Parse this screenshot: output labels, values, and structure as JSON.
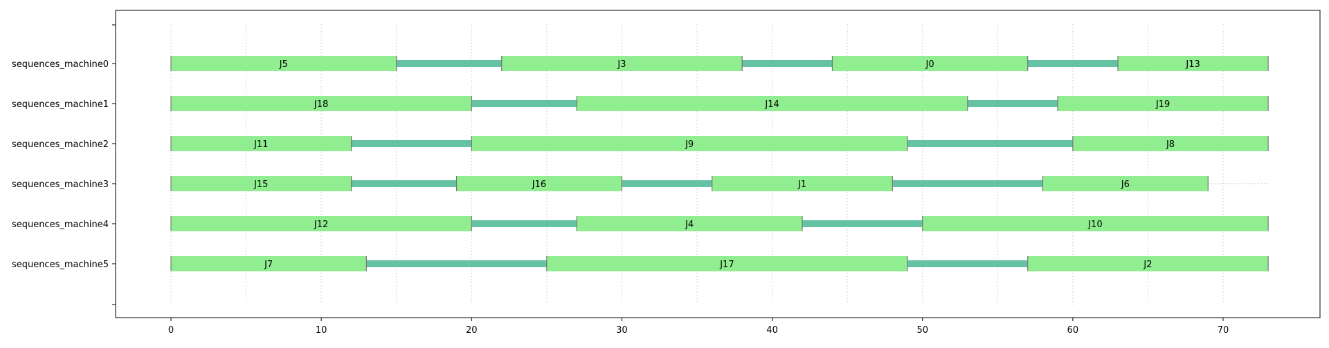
{
  "chart_data": {
    "type": "gantt",
    "xlim": [
      -3.7,
      76.7
    ],
    "x_ticks": [
      0,
      10,
      20,
      30,
      40,
      50,
      60,
      70
    ],
    "x_minor_grid": [
      0,
      5,
      10,
      15,
      20,
      25,
      30,
      35,
      40,
      45,
      50,
      55,
      60,
      65,
      70
    ],
    "grid": "vertical dotted",
    "makespan": 73,
    "colors": {
      "job": "#90ee90",
      "gap": "#66c2a5",
      "edge": "#777777",
      "axis": "#000000",
      "grid": "#c8c8c8"
    },
    "machines": [
      {
        "name": "sequences_machine0",
        "jobs": [
          {
            "label": "J5",
            "start": 0,
            "end": 15
          },
          {
            "label": "J3",
            "start": 22,
            "end": 38
          },
          {
            "label": "J0",
            "start": 44,
            "end": 57
          },
          {
            "label": "J13",
            "start": 63,
            "end": 73
          }
        ]
      },
      {
        "name": "sequences_machine1",
        "jobs": [
          {
            "label": "J18",
            "start": 0,
            "end": 20
          },
          {
            "label": "J14",
            "start": 27,
            "end": 53
          },
          {
            "label": "J19",
            "start": 59,
            "end": 73
          }
        ]
      },
      {
        "name": "sequences_machine2",
        "jobs": [
          {
            "label": "J11",
            "start": 0,
            "end": 12
          },
          {
            "label": "J9",
            "start": 20,
            "end": 49
          },
          {
            "label": "J8",
            "start": 60,
            "end": 73
          }
        ]
      },
      {
        "name": "sequences_machine3",
        "jobs": [
          {
            "label": "J15",
            "start": 0,
            "end": 12
          },
          {
            "label": "J16",
            "start": 19,
            "end": 30
          },
          {
            "label": "J1",
            "start": 36,
            "end": 48
          },
          {
            "label": "J6",
            "start": 58,
            "end": 69
          }
        ]
      },
      {
        "name": "sequences_machine4",
        "jobs": [
          {
            "label": "J12",
            "start": 0,
            "end": 20
          },
          {
            "label": "J4",
            "start": 27,
            "end": 42
          },
          {
            "label": "J10",
            "start": 50,
            "end": 73
          }
        ]
      },
      {
        "name": "sequences_machine5",
        "jobs": [
          {
            "label": "J7",
            "start": 0,
            "end": 13
          },
          {
            "label": "J17",
            "start": 25,
            "end": 49
          },
          {
            "label": "J2",
            "start": 57,
            "end": 73
          }
        ]
      }
    ]
  }
}
